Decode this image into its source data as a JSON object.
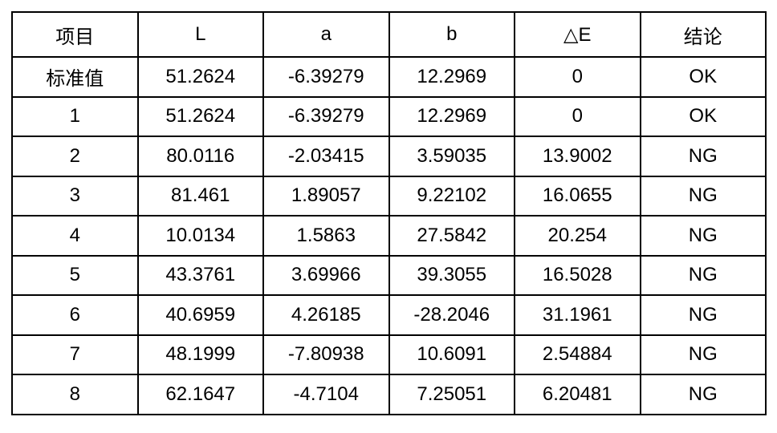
{
  "table": {
    "name": "color-measurement-results",
    "headers": [
      "项目",
      "L",
      "a",
      "b",
      "△E",
      "结论"
    ],
    "rows": [
      [
        "标准值",
        "51.2624",
        "-6.39279",
        "12.2969",
        "0",
        "OK"
      ],
      [
        "1",
        "51.2624",
        "-6.39279",
        "12.2969",
        "0",
        "OK"
      ],
      [
        "2",
        "80.0116",
        "-2.03415",
        "3.59035",
        "13.9002",
        "NG"
      ],
      [
        "3",
        "81.461",
        "1.89057",
        "9.22102",
        "16.0655",
        "NG"
      ],
      [
        "4",
        "10.0134",
        "1.5863",
        "27.5842",
        "20.254",
        "NG"
      ],
      [
        "5",
        "43.3761",
        "3.69966",
        "39.3055",
        "16.5028",
        "NG"
      ],
      [
        "6",
        "40.6959",
        "4.26185",
        "-28.2046",
        "31.1961",
        "NG"
      ],
      [
        "7",
        "48.1999",
        "-7.80938",
        "10.6091",
        "2.54884",
        "NG"
      ],
      [
        "8",
        "62.1647",
        "-4.7104",
        "7.25051",
        "6.20481",
        "NG"
      ]
    ],
    "colors": {
      "border": "#000000",
      "text": "#000000",
      "background": "#ffffff"
    }
  }
}
